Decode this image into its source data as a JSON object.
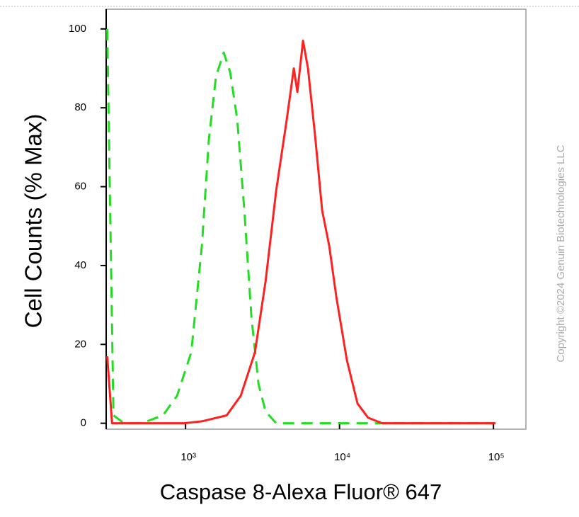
{
  "chart_data": {
    "type": "line",
    "x_label": "Caspase 8-Alexa Fluor® 647",
    "y_label": "Cell Counts (% Max)",
    "watermark": "Copyright ©2024 Genuin Biotechnologies LLC",
    "xscale": "log",
    "xlim": [
      305,
      162500
    ],
    "ylim": [
      -1.5,
      105
    ],
    "xticks": [
      {
        "value": 1000,
        "label": "10³"
      },
      {
        "value": 10000,
        "label": "10⁴"
      },
      {
        "value": 100000,
        "label": "10⁵"
      }
    ],
    "yticks": [
      0,
      20,
      40,
      60,
      80,
      100
    ],
    "series": [
      {
        "color": "#22dd22",
        "dashed": true,
        "x": [
          310,
          340,
          398,
          519,
          713,
          881,
          1089,
          1276,
          1418,
          1577,
          1771,
          1950,
          2167,
          2408,
          2678,
          2977,
          3311,
          3879,
          103000
        ],
        "values": [
          100,
          2,
          0,
          0,
          2,
          7,
          18,
          45,
          72,
          88,
          94,
          89,
          77,
          54,
          27,
          10,
          3,
          0,
          0
        ]
      },
      {
        "color": "#ff2020",
        "dashed": false,
        "x": [
          310,
          333,
          979,
          1276,
          1848,
          2284,
          2823,
          3311,
          3879,
          4542,
          5050,
          5325,
          5793,
          6237,
          6933,
          7713,
          8575,
          9535,
          11170,
          13090,
          15350,
          18970,
          103000
        ],
        "values": [
          17,
          0,
          0,
          0.5,
          2,
          7,
          18,
          36,
          59,
          77,
          90,
          84,
          97,
          90,
          73,
          54,
          45,
          32,
          16,
          5,
          1.4,
          0,
          0
        ]
      }
    ]
  }
}
